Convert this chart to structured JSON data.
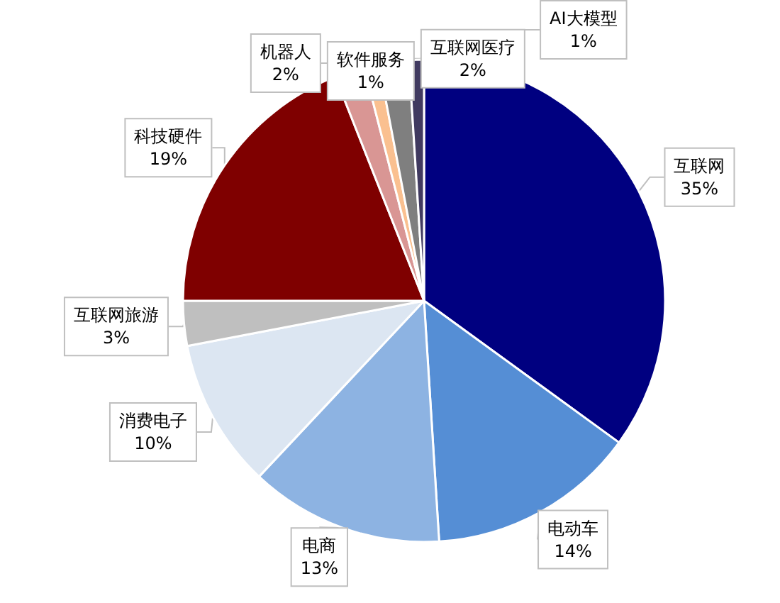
{
  "chart_data": {
    "type": "pie",
    "categories": [
      "互联网",
      "电动车",
      "电商",
      "消费电子",
      "互联网旅游",
      "科技硬件",
      "机器人",
      "软件服务",
      "互联网医疗",
      "AI大模型"
    ],
    "values": [
      35,
      14,
      13,
      10,
      3,
      19,
      2,
      1,
      2,
      1
    ],
    "value_labels": [
      "35%",
      "14%",
      "13%",
      "10%",
      "3%",
      "19%",
      "2%",
      "1%",
      "2%",
      "1%"
    ],
    "colors": [
      "#000080",
      "#558ed5",
      "#8db3e2",
      "#dce6f2",
      "#bfbfbf",
      "#7f0000",
      "#d99694",
      "#fac090",
      "#7f7f7f",
      "#403a60"
    ]
  }
}
